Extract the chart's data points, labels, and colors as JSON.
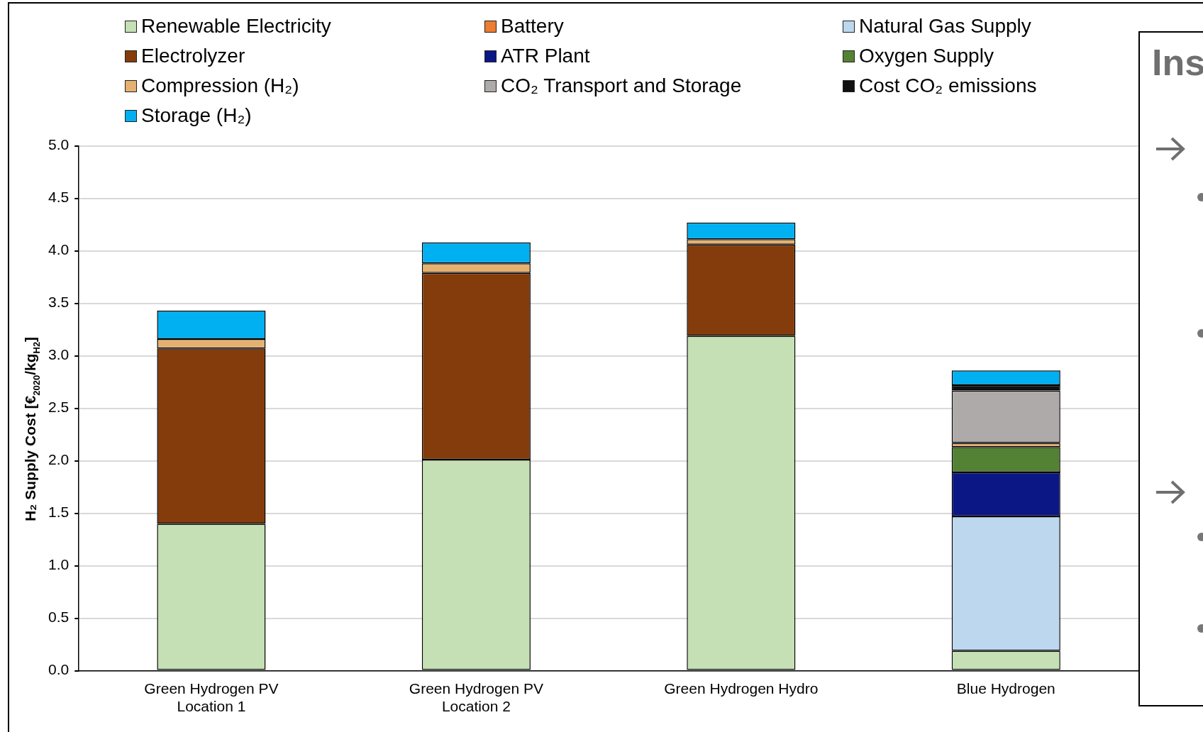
{
  "chart_data": {
    "type": "bar",
    "stacked": true,
    "ylabel": "H₂ Supply Cost [€$_{2020}$/kg$_{H2}$]",
    "categories": [
      "Green Hydrogen PV Location 1",
      "Green Hydrogen PV Location 2",
      "Green Hydrogen Hydro",
      "Blue Hydrogen"
    ],
    "series": [
      {
        "name": "Renewable Electricity",
        "color": "#c5e0b4",
        "values": [
          1.4,
          2.01,
          3.19,
          0.19
        ]
      },
      {
        "name": "Battery",
        "color": "#ed7d31",
        "values": [
          0,
          0,
          0,
          0
        ]
      },
      {
        "name": "Natural Gas Supply",
        "color": "#bdd7ee",
        "values": [
          0,
          0,
          0,
          1.28
        ]
      },
      {
        "name": "Electrolyzer",
        "color": "#843c0c",
        "values": [
          1.67,
          1.78,
          0.87,
          0
        ]
      },
      {
        "name": "ATR Plant",
        "color": "#0c1786",
        "values": [
          0,
          0,
          0,
          0.42
        ]
      },
      {
        "name": "Oxygen Supply",
        "color": "#548235",
        "values": [
          0,
          0,
          0,
          0.24
        ]
      },
      {
        "name": "Compression (H₂)",
        "color": "#e5b171",
        "values": [
          0.09,
          0.09,
          0.05,
          0.04
        ]
      },
      {
        "name": "CO₂ Transport and Storage",
        "color": "#aeaaaa",
        "values": [
          0,
          0,
          0,
          0.5
        ]
      },
      {
        "name": "Cost CO₂ emissions",
        "color": "#111111",
        "values": [
          0,
          0,
          0,
          0.05
        ]
      },
      {
        "name": "Storage (H₂)",
        "color": "#00b0f0",
        "values": [
          0.27,
          0.2,
          0.16,
          0.14
        ]
      }
    ],
    "ylim": [
      0,
      5
    ],
    "yticks": [
      {
        "value": 0,
        "label": "0.0"
      },
      {
        "value": 0.5,
        "label": "0.5"
      },
      {
        "value": 1,
        "label": "1.0"
      },
      {
        "value": 1.5,
        "label": "1.5"
      },
      {
        "value": 2,
        "label": "2.0"
      },
      {
        "value": 2.5,
        "label": "2.5"
      },
      {
        "value": 3,
        "label": "3.0"
      },
      {
        "value": 3.5,
        "label": "3.5"
      },
      {
        "value": 4,
        "label": "4.0"
      },
      {
        "value": 4.5,
        "label": "4.5"
      },
      {
        "value": 5,
        "label": "5.0"
      }
    ],
    "grid": "y",
    "legend": "top",
    "annotations": [
      "Ins"
    ]
  }
}
